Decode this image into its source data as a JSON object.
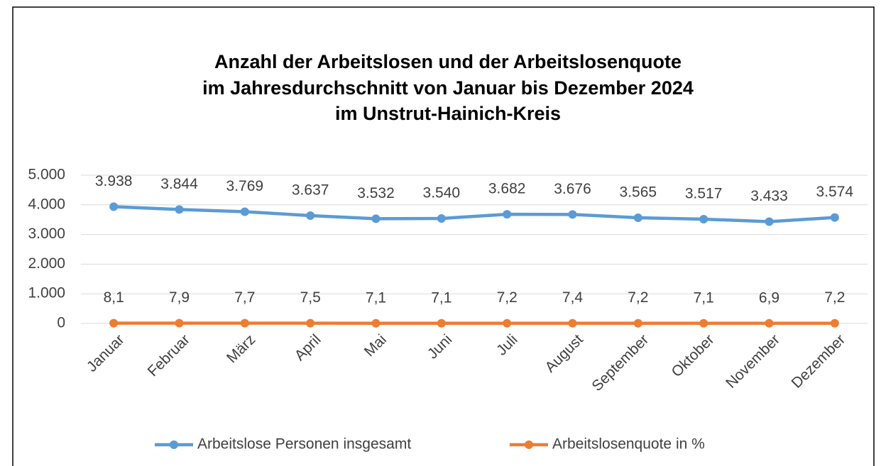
{
  "chart_data": {
    "type": "line",
    "title": [
      "Anzahl der Arbeitslosen und der Arbeitslosenquote",
      "im Jahresdurchschnitt von Januar bis Dezember 2024",
      "im Unstrut-Hainich-Kreis"
    ],
    "categories": [
      "Januar",
      "Februar",
      "März",
      "April",
      "Mai",
      "Juni",
      "Juli",
      "August",
      "September",
      "Oktober",
      "November",
      "Dezember"
    ],
    "series": [
      {
        "name": "Arbeitslose Personen insgesamt",
        "color": "#5b9bd5",
        "values": [
          3938,
          3844,
          3769,
          3637,
          3532,
          3540,
          3682,
          3676,
          3565,
          3517,
          3433,
          3574
        ],
        "value_labels": [
          "3.938",
          "3.844",
          "3.769",
          "3.637",
          "3.532",
          "3.540",
          "3.682",
          "3.676",
          "3.565",
          "3.517",
          "3.433",
          "3.574"
        ]
      },
      {
        "name": "Arbeitslosenquote in %",
        "color": "#ed7d31",
        "values": [
          8.1,
          7.9,
          7.7,
          7.5,
          7.1,
          7.1,
          7.2,
          7.4,
          7.2,
          7.1,
          6.9,
          7.2
        ],
        "value_labels": [
          "8,1",
          "7,9",
          "7,7",
          "7,5",
          "7,1",
          "7,1",
          "7,2",
          "7,4",
          "7,2",
          "7,1",
          "6,9",
          "7,2"
        ]
      }
    ],
    "ylim": [
      0,
      5000
    ],
    "yticks": [
      0,
      {
        "value": 1000,
        "label": "1.000"
      },
      {
        "value": 2000,
        "label": "2.000"
      },
      {
        "value": 3000,
        "label": "3.000"
      },
      {
        "value": 4000,
        "label": "4.000"
      },
      {
        "value": 5000,
        "label": "5.000"
      }
    ],
    "grid": true,
    "legend": "bottom"
  }
}
